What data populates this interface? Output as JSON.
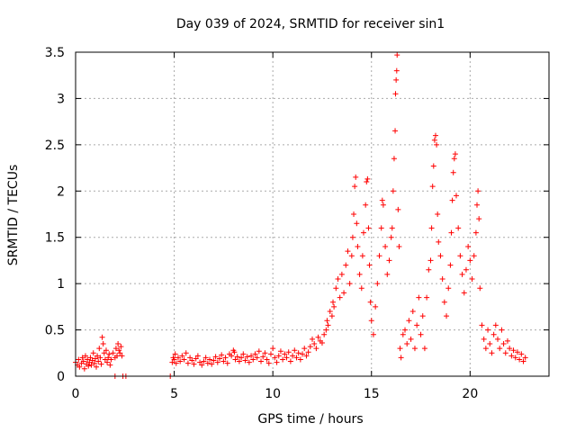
{
  "chart_data": {
    "type": "scatter",
    "title": "Day 039 of 2024, SRMTID for receiver sin1",
    "xlabel": "GPS time / hours",
    "ylabel": "SRMTID / TECUs",
    "xlim": [
      0,
      24
    ],
    "ylim": [
      0,
      3.5
    ],
    "xticks": [
      0,
      5,
      10,
      15,
      20
    ],
    "xtick_labels": [
      "0",
      "5",
      "10",
      "15",
      "20"
    ],
    "yticks": [
      0,
      0.5,
      1,
      1.5,
      2,
      2.5,
      3,
      3.5
    ],
    "ytick_labels": [
      "0",
      "0.5",
      "1",
      "1.5",
      "2",
      "2.5",
      "3",
      "3.5"
    ],
    "grid": true,
    "marker": "+",
    "colors": {
      "series": "#ff0000",
      "grid": "#aaaaaa",
      "axis": "#000000"
    },
    "series": [
      {
        "name": "sin1",
        "points": [
          [
            0.0,
            0.15
          ],
          [
            0.1,
            0.12
          ],
          [
            0.15,
            0.18
          ],
          [
            0.2,
            0.1
          ],
          [
            0.3,
            0.14
          ],
          [
            0.35,
            0.2
          ],
          [
            0.4,
            0.16
          ],
          [
            0.45,
            0.08
          ],
          [
            0.5,
            0.22
          ],
          [
            0.55,
            0.13
          ],
          [
            0.6,
            0.18
          ],
          [
            0.65,
            0.11
          ],
          [
            0.7,
            0.15
          ],
          [
            0.75,
            0.2
          ],
          [
            0.8,
            0.12
          ],
          [
            0.85,
            0.17
          ],
          [
            0.9,
            0.25
          ],
          [
            0.95,
            0.14
          ],
          [
            1.0,
            0.19
          ],
          [
            1.05,
            0.1
          ],
          [
            1.1,
            0.22
          ],
          [
            1.15,
            0.16
          ],
          [
            1.2,
            0.3
          ],
          [
            1.25,
            0.2
          ],
          [
            1.3,
            0.13
          ],
          [
            1.35,
            0.42
          ],
          [
            1.4,
            0.35
          ],
          [
            1.45,
            0.25
          ],
          [
            1.5,
            0.18
          ],
          [
            1.55,
            0.28
          ],
          [
            1.6,
            0.15
          ],
          [
            1.65,
            0.2
          ],
          [
            1.7,
            0.24
          ],
          [
            1.75,
            0.12
          ],
          [
            1.8,
            0.18
          ],
          [
            1.9,
            0.25
          ],
          [
            2.0,
            0.2
          ],
          [
            2.05,
            0.3
          ],
          [
            2.1,
            0.22
          ],
          [
            2.15,
            0.35
          ],
          [
            2.2,
            0.28
          ],
          [
            2.25,
            0.25
          ],
          [
            2.3,
            0.32
          ],
          [
            2.35,
            0.22
          ],
          [
            2.0,
            0.0
          ],
          [
            2.4,
            0.0
          ],
          [
            2.55,
            0.0
          ],
          [
            4.8,
            0.0
          ],
          [
            4.9,
            0.15
          ],
          [
            4.95,
            0.2
          ],
          [
            5.0,
            0.18
          ],
          [
            5.05,
            0.24
          ],
          [
            5.1,
            0.14
          ],
          [
            5.2,
            0.2
          ],
          [
            5.3,
            0.16
          ],
          [
            5.4,
            0.22
          ],
          [
            5.5,
            0.18
          ],
          [
            5.6,
            0.25
          ],
          [
            5.7,
            0.14
          ],
          [
            5.8,
            0.2
          ],
          [
            5.9,
            0.17
          ],
          [
            6.0,
            0.13
          ],
          [
            6.1,
            0.19
          ],
          [
            6.2,
            0.22
          ],
          [
            6.3,
            0.15
          ],
          [
            6.4,
            0.12
          ],
          [
            6.5,
            0.16
          ],
          [
            6.6,
            0.2
          ],
          [
            6.7,
            0.14
          ],
          [
            6.8,
            0.18
          ],
          [
            6.9,
            0.13
          ],
          [
            7.0,
            0.17
          ],
          [
            7.1,
            0.21
          ],
          [
            7.2,
            0.15
          ],
          [
            7.3,
            0.19
          ],
          [
            7.4,
            0.23
          ],
          [
            7.5,
            0.16
          ],
          [
            7.6,
            0.2
          ],
          [
            7.7,
            0.14
          ],
          [
            7.8,
            0.24
          ],
          [
            7.9,
            0.22
          ],
          [
            8.0,
            0.28
          ],
          [
            8.05,
            0.26
          ],
          [
            8.1,
            0.18
          ],
          [
            8.2,
            0.21
          ],
          [
            8.3,
            0.16
          ],
          [
            8.4,
            0.2
          ],
          [
            8.5,
            0.24
          ],
          [
            8.6,
            0.17
          ],
          [
            8.7,
            0.21
          ],
          [
            8.8,
            0.15
          ],
          [
            8.9,
            0.22
          ],
          [
            9.0,
            0.18
          ],
          [
            9.1,
            0.24
          ],
          [
            9.2,
            0.2
          ],
          [
            9.3,
            0.27
          ],
          [
            9.4,
            0.16
          ],
          [
            9.5,
            0.21
          ],
          [
            9.6,
            0.25
          ],
          [
            9.7,
            0.18
          ],
          [
            9.8,
            0.14
          ],
          [
            9.9,
            0.24
          ],
          [
            10.0,
            0.3
          ],
          [
            10.1,
            0.2
          ],
          [
            10.2,
            0.15
          ],
          [
            10.3,
            0.22
          ],
          [
            10.4,
            0.27
          ],
          [
            10.5,
            0.18
          ],
          [
            10.6,
            0.24
          ],
          [
            10.7,
            0.2
          ],
          [
            10.8,
            0.26
          ],
          [
            10.9,
            0.16
          ],
          [
            11.0,
            0.22
          ],
          [
            11.1,
            0.28
          ],
          [
            11.2,
            0.2
          ],
          [
            11.3,
            0.25
          ],
          [
            11.4,
            0.18
          ],
          [
            11.5,
            0.24
          ],
          [
            11.6,
            0.3
          ],
          [
            11.7,
            0.22
          ],
          [
            11.8,
            0.26
          ],
          [
            11.9,
            0.32
          ],
          [
            12.0,
            0.4
          ],
          [
            12.1,
            0.35
          ],
          [
            12.2,
            0.3
          ],
          [
            12.3,
            0.42
          ],
          [
            12.4,
            0.38
          ],
          [
            12.5,
            0.36
          ],
          [
            12.6,
            0.45
          ],
          [
            12.7,
            0.5
          ],
          [
            12.75,
            0.6
          ],
          [
            12.8,
            0.55
          ],
          [
            12.9,
            0.7
          ],
          [
            13.0,
            0.65
          ],
          [
            13.05,
            0.8
          ],
          [
            13.1,
            0.75
          ],
          [
            13.2,
            0.95
          ],
          [
            13.3,
            1.05
          ],
          [
            13.4,
            0.85
          ],
          [
            13.5,
            1.1
          ],
          [
            13.6,
            0.9
          ],
          [
            13.7,
            1.2
          ],
          [
            13.8,
            1.35
          ],
          [
            13.9,
            1.0
          ],
          [
            14.0,
            1.3
          ],
          [
            14.05,
            1.5
          ],
          [
            14.1,
            1.75
          ],
          [
            14.15,
            2.05
          ],
          [
            14.2,
            2.15
          ],
          [
            14.25,
            1.65
          ],
          [
            14.3,
            1.4
          ],
          [
            14.4,
            1.1
          ],
          [
            14.5,
            0.95
          ],
          [
            14.55,
            1.3
          ],
          [
            14.6,
            1.55
          ],
          [
            14.7,
            1.85
          ],
          [
            14.75,
            2.1
          ],
          [
            14.8,
            2.13
          ],
          [
            14.85,
            1.6
          ],
          [
            14.9,
            1.2
          ],
          [
            14.95,
            0.8
          ],
          [
            15.0,
            0.6
          ],
          [
            15.1,
            0.45
          ],
          [
            15.2,
            0.75
          ],
          [
            15.3,
            1.0
          ],
          [
            15.4,
            1.3
          ],
          [
            15.5,
            1.6
          ],
          [
            15.55,
            1.9
          ],
          [
            15.6,
            1.85
          ],
          [
            15.7,
            1.4
          ],
          [
            15.8,
            1.1
          ],
          [
            15.9,
            1.25
          ],
          [
            16.0,
            1.5
          ],
          [
            16.05,
            1.6
          ],
          [
            16.1,
            2.0
          ],
          [
            16.15,
            2.35
          ],
          [
            16.2,
            2.65
          ],
          [
            16.22,
            3.05
          ],
          [
            16.25,
            3.2
          ],
          [
            16.28,
            3.3
          ],
          [
            16.3,
            3.47
          ],
          [
            16.35,
            1.8
          ],
          [
            16.4,
            1.4
          ],
          [
            16.45,
            0.3
          ],
          [
            16.5,
            0.2
          ],
          [
            16.6,
            0.45
          ],
          [
            16.7,
            0.5
          ],
          [
            16.8,
            0.35
          ],
          [
            16.9,
            0.6
          ],
          [
            17.0,
            0.4
          ],
          [
            17.1,
            0.7
          ],
          [
            17.2,
            0.3
          ],
          [
            17.3,
            0.55
          ],
          [
            17.4,
            0.85
          ],
          [
            17.5,
            0.45
          ],
          [
            17.6,
            0.65
          ],
          [
            17.7,
            0.3
          ],
          [
            17.8,
            0.85
          ],
          [
            17.9,
            1.15
          ],
          [
            18.0,
            1.25
          ],
          [
            18.05,
            1.6
          ],
          [
            18.1,
            2.05
          ],
          [
            18.15,
            2.27
          ],
          [
            18.2,
            2.55
          ],
          [
            18.25,
            2.6
          ],
          [
            18.3,
            2.5
          ],
          [
            18.35,
            1.75
          ],
          [
            18.4,
            1.45
          ],
          [
            18.5,
            1.3
          ],
          [
            18.6,
            1.05
          ],
          [
            18.7,
            0.8
          ],
          [
            18.8,
            0.65
          ],
          [
            18.9,
            0.95
          ],
          [
            19.0,
            1.2
          ],
          [
            19.05,
            1.55
          ],
          [
            19.1,
            1.9
          ],
          [
            19.15,
            2.2
          ],
          [
            19.2,
            2.35
          ],
          [
            19.25,
            2.4
          ],
          [
            19.3,
            1.95
          ],
          [
            19.4,
            1.6
          ],
          [
            19.5,
            1.3
          ],
          [
            19.6,
            1.1
          ],
          [
            19.7,
            0.9
          ],
          [
            19.8,
            1.15
          ],
          [
            19.9,
            1.4
          ],
          [
            20.0,
            1.25
          ],
          [
            20.1,
            1.05
          ],
          [
            20.2,
            1.3
          ],
          [
            20.3,
            1.55
          ],
          [
            20.35,
            1.85
          ],
          [
            20.4,
            2.0
          ],
          [
            20.45,
            1.7
          ],
          [
            20.5,
            0.95
          ],
          [
            20.6,
            0.55
          ],
          [
            20.7,
            0.4
          ],
          [
            20.8,
            0.3
          ],
          [
            20.9,
            0.5
          ],
          [
            21.0,
            0.35
          ],
          [
            21.1,
            0.25
          ],
          [
            21.2,
            0.45
          ],
          [
            21.3,
            0.55
          ],
          [
            21.4,
            0.4
          ],
          [
            21.5,
            0.3
          ],
          [
            21.6,
            0.5
          ],
          [
            21.7,
            0.35
          ],
          [
            21.8,
            0.25
          ],
          [
            21.9,
            0.38
          ],
          [
            22.0,
            0.3
          ],
          [
            22.1,
            0.22
          ],
          [
            22.2,
            0.28
          ],
          [
            22.3,
            0.2
          ],
          [
            22.4,
            0.26
          ],
          [
            22.5,
            0.18
          ],
          [
            22.6,
            0.24
          ],
          [
            22.7,
            0.16
          ],
          [
            22.8,
            0.2
          ]
        ]
      }
    ]
  }
}
